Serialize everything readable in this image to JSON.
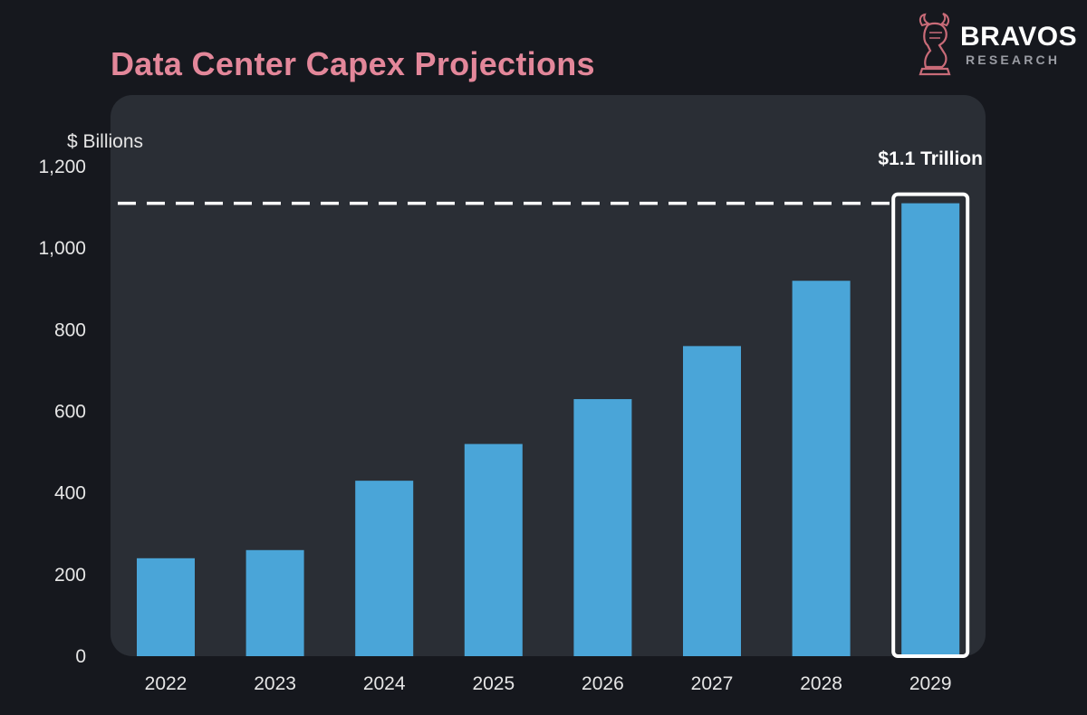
{
  "brand": {
    "name": "BRAVOS",
    "subtitle": "RESEARCH"
  },
  "colors": {
    "background": "#16181e",
    "panel": "#2a2e35",
    "title": "#e3879a",
    "bar": "#4aa5d8",
    "highlight": "#ffffff",
    "text": "#e6e6e6"
  },
  "chart_data": {
    "type": "bar",
    "title": "Data Center Capex Projections",
    "ylabel": "$ Billions",
    "xlabel": "",
    "categories": [
      "2022",
      "2023",
      "2024",
      "2025",
      "2026",
      "2027",
      "2028",
      "2029"
    ],
    "values": [
      240,
      260,
      430,
      520,
      630,
      760,
      920,
      1110
    ],
    "ylim": [
      0,
      1200
    ],
    "yticks": [
      0,
      200,
      400,
      600,
      800,
      1000,
      1200
    ],
    "ytick_labels": [
      "0",
      "200",
      "400",
      "600",
      "800",
      "1,000",
      "1,200"
    ],
    "grid": false,
    "legend": "none",
    "highlight": {
      "category": "2029",
      "label": "$1.1 Trillion",
      "reference_line_value": 1110,
      "reference_line_style": "dashed"
    }
  }
}
